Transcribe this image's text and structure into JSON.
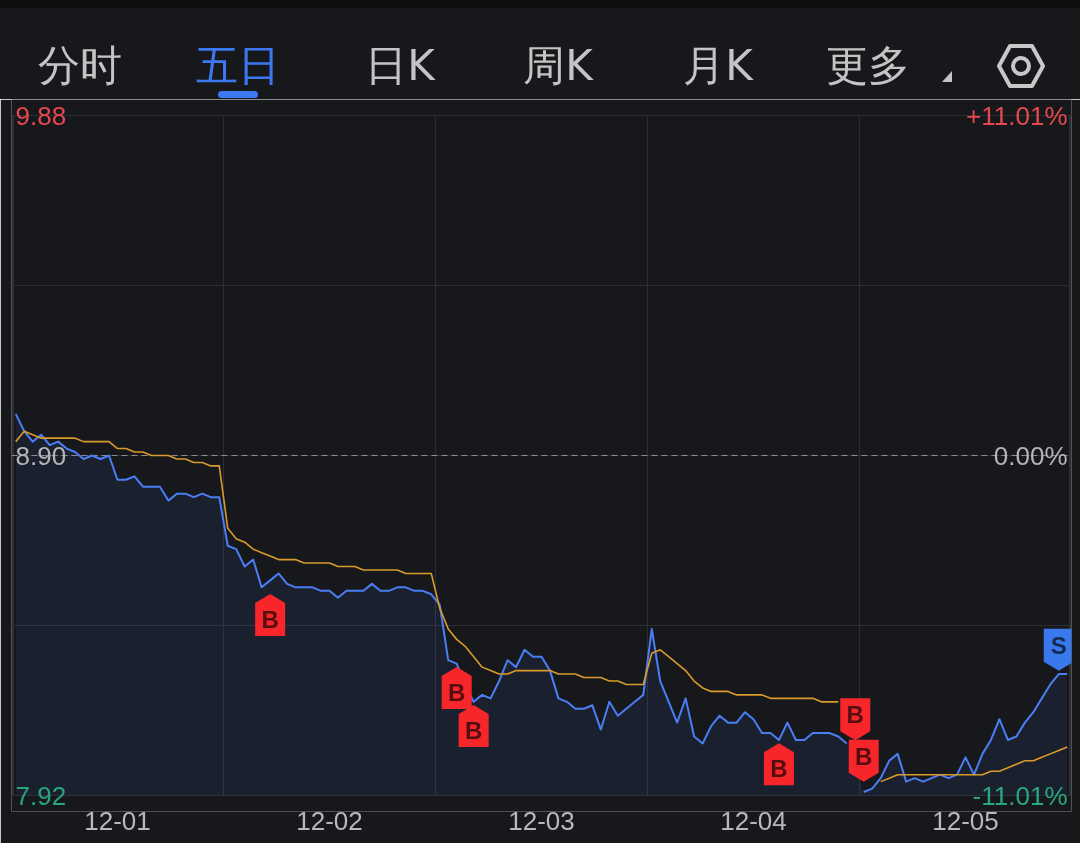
{
  "chart_data": {
    "type": "area",
    "annotations": [
      "分时",
      "五日",
      "日K",
      "周K",
      "月K",
      "更多"
    ],
    "categories": [
      null,
      null,
      null,
      null,
      null,
      null,
      null,
      null,
      null,
      null,
      null,
      null,
      "12-01",
      null,
      null,
      null,
      null,
      null,
      null,
      null,
      null,
      null,
      null,
      null,
      null,
      null,
      null,
      null,
      null,
      null,
      null,
      null,
      null,
      null,
      null,
      null,
      null,
      "12-02",
      null,
      null,
      null,
      null,
      null,
      null,
      null,
      null,
      null,
      null,
      null,
      null,
      null,
      null,
      null,
      null,
      null,
      null,
      null,
      null,
      null,
      null,
      null,
      null,
      "12-03",
      null,
      null,
      null,
      null,
      null,
      null,
      null,
      null,
      null,
      null,
      null,
      null,
      null,
      null,
      null,
      null,
      null,
      null,
      null,
      null,
      null,
      null,
      null,
      null,
      "12-04",
      null,
      null,
      null,
      null,
      null,
      null,
      null,
      null,
      null,
      null,
      null,
      null,
      null,
      null,
      null,
      null,
      null,
      null,
      null,
      null,
      null,
      null,
      null,
      null,
      "12-05",
      null,
      null,
      null,
      null,
      null,
      null,
      null,
      null,
      null,
      null,
      null,
      null
    ],
    "ylim": [
      7.92,
      9.88
    ],
    "yticks": [
      9.88,
      {
        "value": 9.39,
        "label": null
      },
      {
        "value": 8.9,
        "label": "8.90"
      },
      {
        "value": 8.41,
        "label": null
      },
      7.92
    ],
    "y2lim": [
      -11.01,
      11.01
    ],
    "y2ticks": [
      {
        "value": 11.01,
        "label": "+11.01%"
      },
      {
        "value": 0,
        "label": "0.00%"
      },
      {
        "value": -11.01,
        "label": "-11.01%"
      }
    ],
    "grid": "y",
    "ref_lines": [
      {
        "axis": "y",
        "value": 8.9,
        "color": "#8c8c8c",
        "line_style": "dashed"
      }
    ],
    "series": [
      {
        "color": "#4a7ef5",
        "values": [
          9.02,
          8.97,
          8.94,
          8.96,
          8.93,
          8.94,
          8.92,
          8.91,
          8.89,
          8.9,
          8.89,
          8.9,
          8.83,
          8.83,
          8.84,
          8.81,
          8.81,
          8.81,
          8.77,
          8.79,
          8.79,
          8.78,
          8.79,
          8.78,
          8.78,
          8.64,
          8.63,
          8.58,
          8.6,
          8.52,
          8.54,
          8.56,
          8.53,
          8.52,
          8.52,
          8.52,
          8.51,
          8.51,
          8.49,
          8.51,
          8.51,
          8.51,
          8.53,
          8.51,
          8.51,
          8.52,
          8.52,
          8.51,
          8.51,
          8.5,
          8.47,
          8.31,
          8.3,
          8.24,
          8.19,
          8.21,
          8.2,
          8.25,
          8.31,
          8.29,
          8.34,
          8.32,
          8.32,
          8.28,
          8.2,
          8.19,
          8.17,
          8.17,
          8.18,
          8.11,
          8.19,
          8.15,
          8.17,
          8.19,
          8.21,
          8.4,
          8.25,
          8.19,
          8.13,
          8.2,
          8.09,
          8.07,
          8.12,
          8.15,
          8.13,
          8.13,
          8.16,
          8.14,
          8.1,
          8.1,
          8.08,
          8.13,
          8.08,
          8.08,
          8.1,
          8.1,
          8.1,
          8.09,
          8.07,
          null,
          7.93,
          7.94,
          7.97,
          8.02,
          8.04,
          7.96,
          7.97,
          7.96,
          7.97,
          7.98,
          7.97,
          7.98,
          8.03,
          7.98,
          8.04,
          8.08,
          8.14,
          8.08,
          8.09,
          8.13,
          8.16,
          8.2,
          8.24,
          8.27,
          8.27
        ]
      },
      {
        "type": "line",
        "color": "#d99a2b",
        "values": [
          8.94,
          8.97,
          8.96,
          8.95,
          8.95,
          8.95,
          8.95,
          8.95,
          8.94,
          8.94,
          8.94,
          8.94,
          8.92,
          8.92,
          8.91,
          8.91,
          8.9,
          8.9,
          8.9,
          8.89,
          8.89,
          8.88,
          8.88,
          8.87,
          8.87,
          8.69,
          8.66,
          8.65,
          8.63,
          8.62,
          8.61,
          8.6,
          8.6,
          8.6,
          8.59,
          8.59,
          8.59,
          8.59,
          8.58,
          8.58,
          8.58,
          8.57,
          8.57,
          8.57,
          8.57,
          8.57,
          8.56,
          8.56,
          8.56,
          8.56,
          8.46,
          8.4,
          8.37,
          8.35,
          8.32,
          8.29,
          8.28,
          8.27,
          8.27,
          8.28,
          8.28,
          8.28,
          8.28,
          8.28,
          8.27,
          8.27,
          8.27,
          8.26,
          8.26,
          8.26,
          8.25,
          8.25,
          8.24,
          8.24,
          8.24,
          8.33,
          8.34,
          8.32,
          8.3,
          8.28,
          8.25,
          8.23,
          8.22,
          8.22,
          8.22,
          8.21,
          8.21,
          8.21,
          8.21,
          8.2,
          8.2,
          8.2,
          8.2,
          8.2,
          8.2,
          8.19,
          8.19,
          8.19,
          null,
          null,
          null,
          null,
          7.96,
          7.97,
          7.98,
          7.98,
          7.98,
          7.98,
          7.98,
          7.98,
          7.98,
          7.98,
          7.98,
          7.98,
          7.98,
          7.99,
          7.99,
          8.0,
          8.01,
          8.02,
          8.02,
          8.03,
          8.04,
          8.05,
          8.06
        ]
      },
      {
        "type": "scatter",
        "name": "B",
        "color": "#f7262b",
        "values": [
          null,
          null,
          null,
          null,
          null,
          null,
          null,
          null,
          null,
          null,
          null,
          null,
          null,
          null,
          null,
          null,
          null,
          null,
          null,
          null,
          null,
          null,
          null,
          null,
          null,
          null,
          null,
          null,
          null,
          null,
          8.44,
          null,
          null,
          null,
          null,
          null,
          null,
          null,
          null,
          null,
          null,
          null,
          null,
          null,
          null,
          null,
          null,
          null,
          null,
          null,
          null,
          null,
          8.23,
          null,
          8.12,
          null,
          null,
          null,
          null,
          null,
          null,
          null,
          null,
          null,
          null,
          null,
          null,
          null,
          null,
          null,
          null,
          null,
          null,
          null,
          null,
          null,
          null,
          null,
          null,
          null,
          null,
          null,
          null,
          null,
          null,
          null,
          null,
          null,
          null,
          null,
          8.01,
          null,
          null,
          null,
          null,
          null,
          null,
          null,
          null,
          8.14,
          8.02,
          null,
          null,
          null,
          null,
          null,
          null,
          null,
          null,
          null,
          null,
          null,
          null,
          null,
          null,
          null,
          null,
          null,
          null,
          null,
          null,
          null,
          null,
          null,
          null
        ]
      },
      {
        "type": "scatter",
        "name": "S",
        "color": "#3a78ee",
        "values": [
          null,
          null,
          null,
          null,
          null,
          null,
          null,
          null,
          null,
          null,
          null,
          null,
          null,
          null,
          null,
          null,
          null,
          null,
          null,
          null,
          null,
          null,
          null,
          null,
          null,
          null,
          null,
          null,
          null,
          null,
          null,
          null,
          null,
          null,
          null,
          null,
          null,
          null,
          null,
          null,
          null,
          null,
          null,
          null,
          null,
          null,
          null,
          null,
          null,
          null,
          null,
          null,
          null,
          null,
          null,
          null,
          null,
          null,
          null,
          null,
          null,
          null,
          null,
          null,
          null,
          null,
          null,
          null,
          null,
          null,
          null,
          null,
          null,
          null,
          null,
          null,
          null,
          null,
          null,
          null,
          null,
          null,
          null,
          null,
          null,
          null,
          null,
          null,
          null,
          null,
          null,
          null,
          null,
          null,
          null,
          null,
          null,
          null,
          null,
          null,
          null,
          null,
          null,
          null,
          null,
          null,
          null,
          null,
          null,
          null,
          null,
          null,
          null,
          null,
          null,
          null,
          null,
          null,
          null,
          null,
          null,
          null,
          null,
          8.34,
          null
        ]
      }
    ]
  }
}
